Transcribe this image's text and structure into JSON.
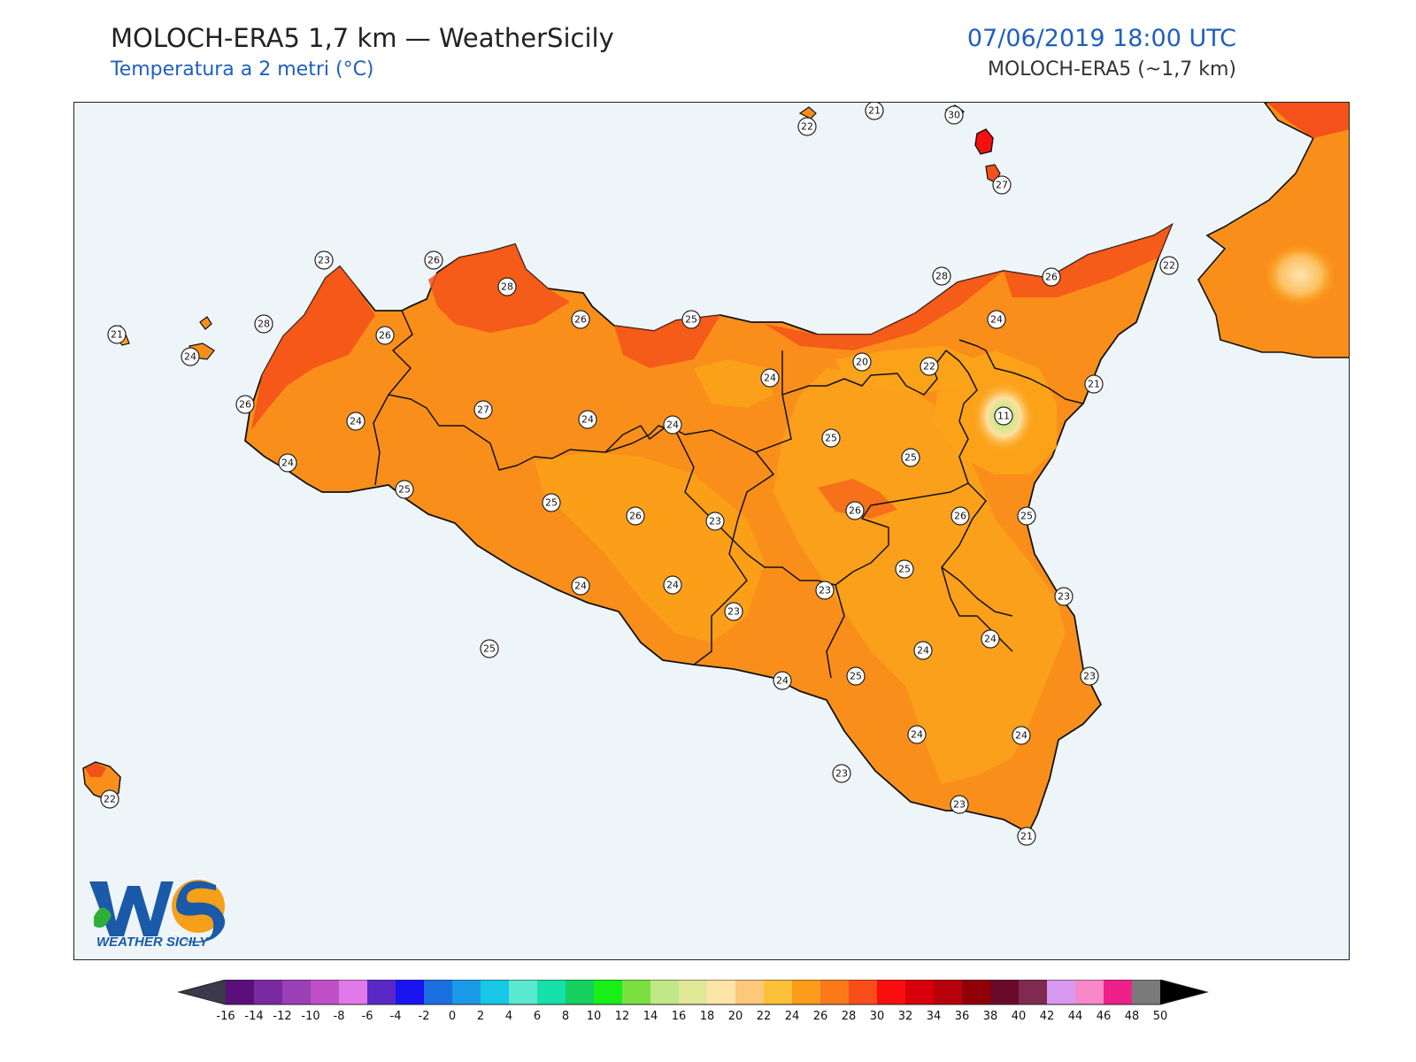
{
  "header": {
    "title": "MOLOCH-ERA5 1,7 km — WeatherSicily",
    "subtitle": "Temperatura a 2 metri (°C)",
    "datetime": "07/06/2019 18:00 UTC",
    "model": "MOLOCH-ERA5 (~1,7 km)"
  },
  "logo": {
    "text": "WEATHER SICILY",
    "initials": "WS"
  },
  "colors": {
    "sea": "#eef5f9",
    "land_low": "#f98f1a",
    "land_mid": "#fba41a",
    "land_hot": "#f4521a",
    "border": "#111111"
  },
  "stations": [
    {
      "label": "22"
    },
    {
      "label": "21"
    },
    {
      "label": "30"
    },
    {
      "label": "27"
    },
    {
      "label": "23"
    },
    {
      "label": "26"
    },
    {
      "label": "28"
    },
    {
      "label": "26"
    },
    {
      "label": "25"
    },
    {
      "label": "28"
    },
    {
      "label": "26"
    },
    {
      "label": "22"
    },
    {
      "label": "21"
    },
    {
      "label": "24"
    },
    {
      "label": "28"
    },
    {
      "label": "26"
    },
    {
      "label": "24"
    },
    {
      "label": "20"
    },
    {
      "label": "22"
    },
    {
      "label": "24"
    },
    {
      "label": "21"
    },
    {
      "label": "26"
    },
    {
      "label": "24"
    },
    {
      "label": "27"
    },
    {
      "label": "24"
    },
    {
      "label": "24"
    },
    {
      "label": "24"
    },
    {
      "label": "11"
    },
    {
      "label": "25"
    },
    {
      "label": "25"
    },
    {
      "label": "25"
    },
    {
      "label": "25"
    },
    {
      "label": "25"
    },
    {
      "label": "26"
    },
    {
      "label": "23"
    },
    {
      "label": "26"
    },
    {
      "label": "26"
    },
    {
      "label": "25"
    },
    {
      "label": "25"
    },
    {
      "label": "24"
    },
    {
      "label": "24"
    },
    {
      "label": "23"
    },
    {
      "label": "23"
    },
    {
      "label": "23"
    },
    {
      "label": "24"
    },
    {
      "label": "24"
    },
    {
      "label": "25"
    },
    {
      "label": "24"
    },
    {
      "label": "23"
    },
    {
      "label": "24"
    },
    {
      "label": "24"
    },
    {
      "label": "23"
    },
    {
      "label": "23"
    },
    {
      "label": "21"
    },
    {
      "label": "22"
    }
  ],
  "colorbar": {
    "ticks": [
      "-16",
      "-14",
      "-12",
      "-10",
      "-8",
      "-6",
      "-4",
      "-2",
      "0",
      "2",
      "4",
      "6",
      "8",
      "10",
      "12",
      "14",
      "16",
      "18",
      "20",
      "22",
      "24",
      "26",
      "28",
      "30",
      "32",
      "34",
      "36",
      "38",
      "40",
      "42",
      "44",
      "46",
      "48",
      "50"
    ],
    "colors": [
      "#3d0a3f",
      "#5b0f7a",
      "#7a2aa0",
      "#9a3fb5",
      "#c04fc8",
      "#e07ae8",
      "#5a28c6",
      "#1a14f0",
      "#1a6fe0",
      "#1a9ae6",
      "#16c8e6",
      "#5ae8d0",
      "#16e0a8",
      "#16d060",
      "#16f016",
      "#7ae040",
      "#c0e888",
      "#e0e898",
      "#fde4a8",
      "#fcc87a",
      "#fcc038",
      "#fb9c1a",
      "#fa7a1a",
      "#fa4e1a",
      "#f80e0e",
      "#d8000a",
      "#b8000a",
      "#900008",
      "#6a0a2a",
      "#802a50",
      "#d898f0",
      "#f888c8",
      "#f0208a",
      "#7a7a7a",
      "#3a3a3a"
    ]
  }
}
